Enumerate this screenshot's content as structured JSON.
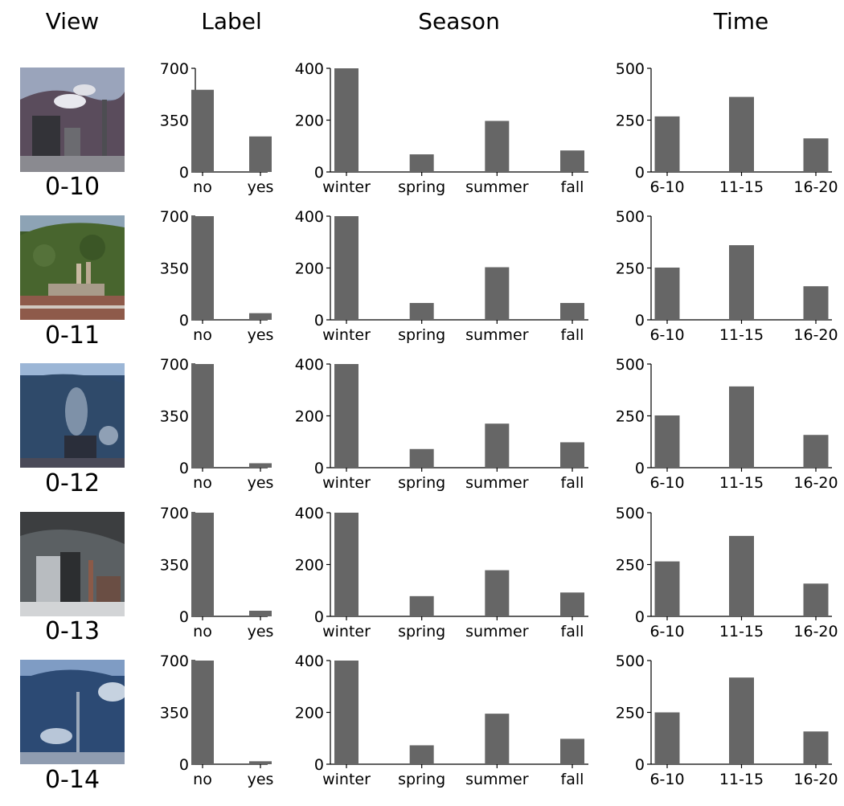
{
  "headers": {
    "view": "View",
    "label": "Label",
    "season": "Season",
    "time": "Time"
  },
  "colors": {
    "bar": "#666666",
    "axis": "#000000"
  },
  "chart_data": {
    "type": "bar",
    "rows": [
      {
        "view": "0-10",
        "label": {
          "categories": [
            "no",
            "yes"
          ],
          "values": [
            555,
            240
          ],
          "ylim": [
            0,
            700
          ],
          "ticks": [
            0,
            350,
            700
          ]
        },
        "season": {
          "categories": [
            "winter",
            "spring",
            "summer",
            "fall"
          ],
          "values": [
            400,
            68,
            197,
            83
          ],
          "ylim": [
            0,
            400
          ],
          "ticks": [
            0,
            200,
            400
          ]
        },
        "time": {
          "categories": [
            "6-10",
            "11-15",
            "16-20"
          ],
          "values": [
            268,
            362,
            162
          ],
          "ylim": [
            0,
            500
          ],
          "ticks": [
            0,
            250,
            500
          ]
        }
      },
      {
        "view": "0-11",
        "label": {
          "categories": [
            "no",
            "yes"
          ],
          "values": [
            700,
            45
          ],
          "ylim": [
            0,
            700
          ],
          "ticks": [
            0,
            350,
            700
          ]
        },
        "season": {
          "categories": [
            "winter",
            "spring",
            "summer",
            "fall"
          ],
          "values": [
            400,
            65,
            203,
            65
          ],
          "ylim": [
            0,
            400
          ],
          "ticks": [
            0,
            200,
            400
          ]
        },
        "time": {
          "categories": [
            "6-10",
            "11-15",
            "16-20"
          ],
          "values": [
            252,
            360,
            162
          ],
          "ylim": [
            0,
            500
          ],
          "ticks": [
            0,
            250,
            500
          ]
        }
      },
      {
        "view": "0-12",
        "label": {
          "categories": [
            "no",
            "yes"
          ],
          "values": [
            700,
            30
          ],
          "ylim": [
            0,
            700
          ],
          "ticks": [
            0,
            350,
            700
          ]
        },
        "season": {
          "categories": [
            "winter",
            "spring",
            "summer",
            "fall"
          ],
          "values": [
            400,
            72,
            170,
            98
          ],
          "ylim": [
            0,
            400
          ],
          "ticks": [
            0,
            200,
            400
          ]
        },
        "time": {
          "categories": [
            "6-10",
            "11-15",
            "16-20"
          ],
          "values": [
            252,
            392,
            158
          ],
          "ylim": [
            0,
            500
          ],
          "ticks": [
            0,
            250,
            500
          ]
        }
      },
      {
        "view": "0-13",
        "label": {
          "categories": [
            "no",
            "yes"
          ],
          "values": [
            700,
            38
          ],
          "ylim": [
            0,
            700
          ],
          "ticks": [
            0,
            350,
            700
          ]
        },
        "season": {
          "categories": [
            "winter",
            "spring",
            "summer",
            "fall"
          ],
          "values": [
            400,
            78,
            178,
            92
          ],
          "ylim": [
            0,
            400
          ],
          "ticks": [
            0,
            200,
            400
          ]
        },
        "time": {
          "categories": [
            "6-10",
            "11-15",
            "16-20"
          ],
          "values": [
            265,
            388,
            158
          ],
          "ylim": [
            0,
            500
          ],
          "ticks": [
            0,
            250,
            500
          ]
        }
      },
      {
        "view": "0-14",
        "label": {
          "categories": [
            "no",
            "yes"
          ],
          "values": [
            700,
            20
          ],
          "ylim": [
            0,
            700
          ],
          "ticks": [
            0,
            350,
            700
          ]
        },
        "season": {
          "categories": [
            "winter",
            "spring",
            "summer",
            "fall"
          ],
          "values": [
            400,
            73,
            195,
            98
          ],
          "ylim": [
            0,
            400
          ],
          "ticks": [
            0,
            200,
            400
          ]
        },
        "time": {
          "categories": [
            "6-10",
            "11-15",
            "16-20"
          ],
          "values": [
            250,
            418,
            158
          ],
          "ylim": [
            0,
            500
          ],
          "ticks": [
            0,
            250,
            500
          ]
        }
      }
    ]
  }
}
